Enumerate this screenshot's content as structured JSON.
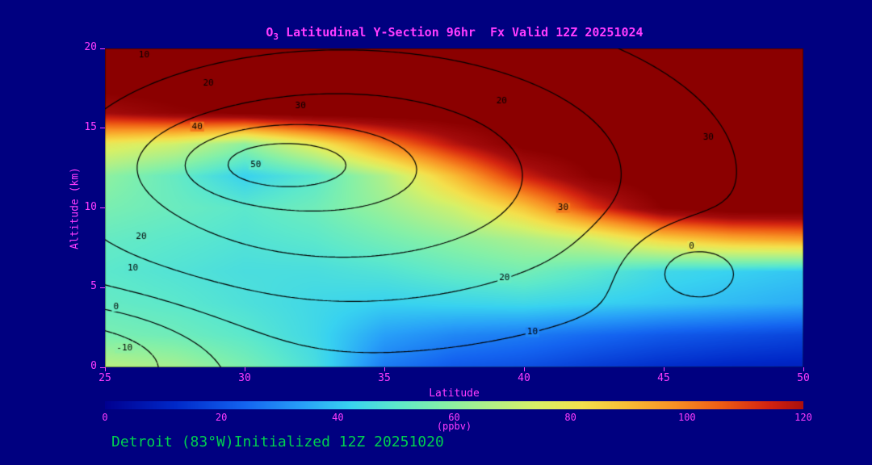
{
  "colors": {
    "background": "#000080",
    "text_magenta": "#ff3cff",
    "text_green": "#00cf4f",
    "contour_line": "#000000"
  },
  "header": {
    "title_prefix": "O",
    "title_sub": "3",
    "title_rest": " Latitudinal Y-Section 96hr  Fx Valid 12Z 20251024"
  },
  "footer": {
    "station_text": "Detroit (83°W)Initialized 12Z 20251020"
  },
  "chart_data": {
    "type": "heatmap",
    "title": "O3 Latitudinal Y-Section 96hr  Fx Valid 12Z 20251024",
    "x_axis": {
      "label": "Latitude",
      "min": 25,
      "max": 50,
      "ticks": [
        25,
        30,
        35,
        40,
        45,
        50
      ]
    },
    "y_axis": {
      "label": "Altitude (km)",
      "min": 0,
      "max": 20,
      "ticks": [
        0,
        5,
        10,
        15,
        20
      ]
    },
    "colorbar": {
      "label": "(ppbv)",
      "min": 0,
      "max": 120,
      "ticks": [
        0,
        20,
        40,
        60,
        80,
        100,
        120
      ]
    },
    "fill_field": {
      "name": "ozone_ppbv",
      "lats": [
        25,
        27.5,
        30,
        32.5,
        35,
        37.5,
        40,
        42.5,
        45,
        47.5,
        50
      ],
      "alts": [
        0,
        2,
        4,
        6,
        8,
        10,
        12,
        14,
        16,
        18,
        20
      ],
      "values_by_alt": [
        [
          68,
          64,
          56,
          46,
          28,
          22,
          20,
          16,
          13,
          11,
          10
        ],
        [
          56,
          54,
          50,
          44,
          34,
          30,
          28,
          25,
          22,
          20,
          18
        ],
        [
          52,
          50,
          47,
          44,
          42,
          43,
          44,
          42,
          40,
          38,
          36
        ],
        [
          50,
          48,
          46,
          46,
          48,
          52,
          55,
          50,
          44,
          42,
          40
        ],
        [
          52,
          50,
          48,
          50,
          55,
          60,
          65,
          72,
          85,
          92,
          95
        ],
        [
          56,
          53,
          50,
          54,
          62,
          72,
          88,
          112,
          130,
          135,
          135
        ],
        [
          60,
          52,
          42,
          50,
          66,
          90,
          115,
          130,
          135,
          135,
          135
        ],
        [
          78,
          72,
          60,
          78,
          100,
          118,
          132,
          135,
          135,
          135,
          135
        ],
        [
          122,
          128,
          132,
          135,
          135,
          135,
          135,
          135,
          135,
          135,
          135
        ],
        [
          135,
          135,
          135,
          135,
          135,
          135,
          135,
          135,
          135,
          135,
          135
        ],
        [
          135,
          135,
          135,
          135,
          135,
          135,
          135,
          135,
          135,
          135,
          135
        ]
      ]
    },
    "contour_field": {
      "name": "overlay_isolines",
      "levels": [
        -10,
        0,
        10,
        20,
        30,
        40,
        50
      ],
      "negative_dashed": true,
      "gaussians": [
        {
          "amp": 40,
          "lat": 33.5,
          "alt": 12,
          "slat": 12,
          "salt": 9.5
        },
        {
          "amp": 18,
          "lat": 31,
          "alt": 12.8,
          "slat": 3.5,
          "salt": 2.2
        },
        {
          "amp": -26,
          "lat": 23.5,
          "alt": 0.5,
          "slat": 5,
          "salt": 3.6
        },
        {
          "amp": -12,
          "lat": 45.8,
          "alt": 6.3,
          "slat": 2.3,
          "salt": 2.6
        }
      ],
      "labels": [
        {
          "text": "10",
          "lat": 26.4,
          "alt": 19.6
        },
        {
          "text": "20",
          "lat": 28.7,
          "alt": 17.8
        },
        {
          "text": "30",
          "lat": 32.0,
          "alt": 16.4
        },
        {
          "text": "40",
          "lat": 28.3,
          "alt": 15.1
        },
        {
          "text": "50",
          "lat": 30.4,
          "alt": 12.7
        },
        {
          "text": "20",
          "lat": 39.2,
          "alt": 16.7
        },
        {
          "text": "30",
          "lat": 46.6,
          "alt": 14.4
        },
        {
          "text": "30",
          "lat": 41.4,
          "alt": 10.0
        },
        {
          "text": "0",
          "lat": 46.0,
          "alt": 7.6
        },
        {
          "text": "20",
          "lat": 39.3,
          "alt": 5.6
        },
        {
          "text": "10",
          "lat": 40.3,
          "alt": 2.2
        },
        {
          "text": "20",
          "lat": 26.3,
          "alt": 8.2
        },
        {
          "text": "10",
          "lat": 26.0,
          "alt": 6.2
        },
        {
          "text": "0",
          "lat": 25.4,
          "alt": 3.8
        },
        {
          "text": "-10",
          "lat": 25.7,
          "alt": 1.2
        }
      ]
    },
    "colormap": [
      [
        0,
        "#000090"
      ],
      [
        12,
        "#0028c8"
      ],
      [
        24,
        "#1464f0"
      ],
      [
        34,
        "#28a0f8"
      ],
      [
        42,
        "#38d2f0"
      ],
      [
        50,
        "#5ce8cc"
      ],
      [
        58,
        "#84f0a8"
      ],
      [
        66,
        "#b0f088"
      ],
      [
        74,
        "#d8f066"
      ],
      [
        82,
        "#f4e04c"
      ],
      [
        90,
        "#f8bc34"
      ],
      [
        98,
        "#f89024"
      ],
      [
        106,
        "#ee5c14"
      ],
      [
        114,
        "#d42410"
      ],
      [
        121,
        "#a40c0c"
      ],
      [
        130,
        "#8b0000"
      ]
    ]
  }
}
